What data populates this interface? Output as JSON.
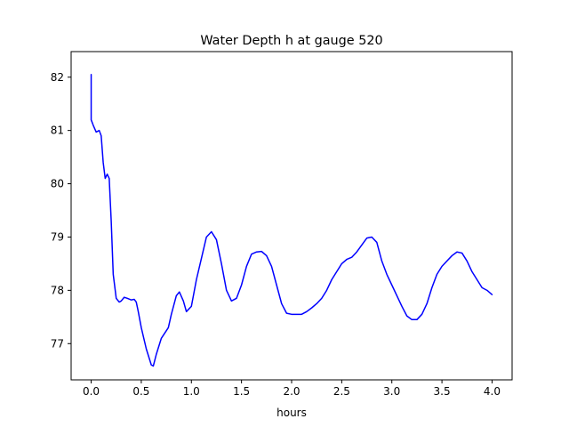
{
  "chart_data": {
    "type": "line",
    "title": "Water Depth h at gauge 520",
    "xlabel": "hours",
    "ylabel": "",
    "xlim": [
      -0.2,
      4.2
    ],
    "ylim": [
      76.32,
      82.48
    ],
    "xticks": [
      0.0,
      0.5,
      1.0,
      1.5,
      2.0,
      2.5,
      3.0,
      3.5,
      4.0
    ],
    "xtick_labels": [
      "0.0",
      "0.5",
      "1.0",
      "1.5",
      "2.0",
      "2.5",
      "3.0",
      "3.5",
      "4.0"
    ],
    "yticks": [
      77,
      78,
      79,
      80,
      81,
      82
    ],
    "ytick_labels": [
      "77",
      "78",
      "79",
      "80",
      "81",
      "82"
    ],
    "grid": false,
    "series": [
      {
        "color": "#0000ff",
        "x": [
          0.0,
          0.0,
          0.02,
          0.05,
          0.08,
          0.1,
          0.12,
          0.14,
          0.16,
          0.18,
          0.2,
          0.22,
          0.25,
          0.28,
          0.3,
          0.33,
          0.36,
          0.4,
          0.43,
          0.45,
          0.47,
          0.5,
          0.55,
          0.6,
          0.62,
          0.65,
          0.7,
          0.77,
          0.8,
          0.85,
          0.88,
          0.92,
          0.95,
          1.0,
          1.05,
          1.1,
          1.15,
          1.2,
          1.25,
          1.3,
          1.35,
          1.4,
          1.45,
          1.5,
          1.55,
          1.6,
          1.65,
          1.7,
          1.75,
          1.8,
          1.85,
          1.9,
          1.95,
          2.0,
          2.05,
          2.1,
          2.15,
          2.2,
          2.25,
          2.3,
          2.35,
          2.4,
          2.45,
          2.5,
          2.55,
          2.6,
          2.65,
          2.7,
          2.75,
          2.8,
          2.85,
          2.9,
          2.95,
          3.0,
          3.05,
          3.1,
          3.15,
          3.2,
          3.25,
          3.3,
          3.35,
          3.4,
          3.45,
          3.5,
          3.55,
          3.6,
          3.65,
          3.7,
          3.75,
          3.8,
          3.85,
          3.9,
          3.95,
          4.0
        ],
        "values": [
          82.05,
          81.2,
          81.1,
          80.97,
          81.0,
          80.9,
          80.4,
          80.1,
          80.18,
          80.1,
          79.3,
          78.3,
          77.85,
          77.78,
          77.8,
          77.87,
          77.85,
          77.82,
          77.83,
          77.78,
          77.6,
          77.3,
          76.9,
          76.6,
          76.58,
          76.8,
          77.1,
          77.3,
          77.55,
          77.9,
          77.97,
          77.8,
          77.6,
          77.7,
          78.2,
          78.6,
          79.0,
          79.1,
          78.95,
          78.5,
          78.0,
          77.8,
          77.85,
          78.1,
          78.45,
          78.68,
          78.72,
          78.73,
          78.65,
          78.45,
          78.1,
          77.75,
          77.57,
          77.55,
          77.55,
          77.55,
          77.6,
          77.67,
          77.75,
          77.85,
          78.0,
          78.2,
          78.35,
          78.5,
          78.58,
          78.62,
          78.72,
          78.85,
          78.98,
          79.0,
          78.9,
          78.55,
          78.3,
          78.1,
          77.9,
          77.7,
          77.52,
          77.45,
          77.45,
          77.55,
          77.75,
          78.05,
          78.3,
          78.45,
          78.55,
          78.65,
          78.72,
          78.7,
          78.55,
          78.35,
          78.2,
          78.05,
          78.0,
          77.92
        ]
      }
    ]
  }
}
